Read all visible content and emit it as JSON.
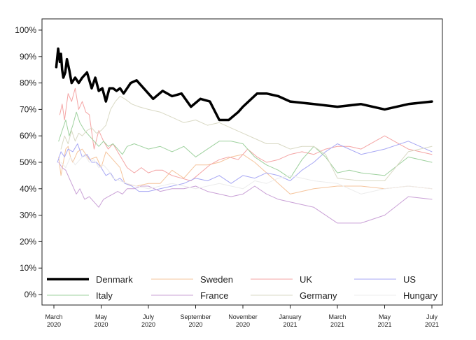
{
  "chart_data": {
    "type": "line",
    "title": "",
    "xlabel": "",
    "ylabel": "",
    "ylim": [
      0,
      100
    ],
    "x_range": [
      0,
      16
    ],
    "yticks": [
      "0%",
      "10%",
      "20%",
      "30%",
      "40%",
      "50%",
      "60%",
      "70%",
      "80%",
      "90%",
      "100%"
    ],
    "xticks": [
      {
        "x": 0.0,
        "line1": "March",
        "line2": "2020"
      },
      {
        "x": 2.0,
        "line1": "May",
        "line2": "2020"
      },
      {
        "x": 4.0,
        "line1": "July",
        "line2": "2020"
      },
      {
        "x": 6.0,
        "line1": "September",
        "line2": "2020"
      },
      {
        "x": 8.0,
        "line1": "November",
        "line2": "2020"
      },
      {
        "x": 10.0,
        "line1": "January",
        "line2": "2021"
      },
      {
        "x": 12.0,
        "line1": "March",
        "line2": "2021"
      },
      {
        "x": 14.0,
        "line1": "May",
        "line2": "2021"
      },
      {
        "x": 16.0,
        "line1": "July",
        "line2": "2021"
      }
    ],
    "series": [
      {
        "name": "Denmark",
        "color": "#000000",
        "width": 3.5,
        "x": [
          0.1,
          0.18,
          0.25,
          0.3,
          0.35,
          0.4,
          0.48,
          0.55,
          0.65,
          0.75,
          0.9,
          1.05,
          1.2,
          1.4,
          1.6,
          1.75,
          1.9,
          2.05,
          2.2,
          2.35,
          2.5,
          2.65,
          2.8,
          2.95,
          3.1,
          3.25,
          3.5,
          3.8,
          4.2,
          4.6,
          5.0,
          5.4,
          5.8,
          6.2,
          6.6,
          7.0,
          7.4,
          7.8,
          8.0,
          8.6,
          9.0,
          9.5,
          10.0,
          11.0,
          12.0,
          13.0,
          14.0,
          15.0,
          16.0
        ],
        "y": [
          86,
          93,
          88,
          91,
          85,
          82,
          84,
          89,
          85,
          80,
          82,
          80,
          82,
          84,
          78,
          82,
          77,
          78,
          73,
          78,
          78,
          77,
          78,
          76,
          78,
          80,
          81,
          78,
          74,
          77,
          75,
          76,
          71,
          74,
          73,
          66,
          66,
          69,
          71,
          76,
          76,
          75,
          73,
          72,
          71,
          72,
          70,
          72,
          73
        ]
      },
      {
        "name": "Sweden",
        "color": "#f5c49c",
        "width": 1,
        "x": [
          0.2,
          0.3,
          0.4,
          0.5,
          0.6,
          0.7,
          0.8,
          1.0,
          1.2,
          1.5,
          1.8,
          2.0,
          2.2,
          2.5,
          2.8,
          3.0,
          3.5,
          4.0,
          4.5,
          5.0,
          5.5,
          6.0,
          6.5,
          7.0,
          7.5,
          8.0,
          8.5,
          9.0,
          9.5,
          10.0,
          11.0,
          12.0,
          13.0,
          14.0,
          15.0,
          16.0
        ],
        "y": [
          52,
          45,
          50,
          55,
          56,
          52,
          50,
          54,
          55,
          51,
          52,
          48,
          54,
          51,
          48,
          42,
          41,
          42,
          42,
          47,
          44,
          49,
          49,
          50,
          52,
          53,
          50,
          46,
          42,
          38,
          40,
          41,
          41,
          40,
          41,
          40
        ]
      },
      {
        "name": "UK",
        "color": "#f4a4a4",
        "width": 1,
        "x": [
          0.25,
          0.35,
          0.45,
          0.6,
          0.75,
          0.9,
          1.05,
          1.2,
          1.35,
          1.5,
          1.7,
          1.9,
          2.1,
          2.3,
          2.5,
          2.7,
          2.9,
          3.1,
          3.4,
          3.7,
          4.0,
          4.3,
          4.6,
          5.0,
          5.4,
          5.8,
          6.2,
          6.6,
          7.0,
          7.4,
          7.8,
          8.2,
          8.6,
          9.0,
          9.5,
          10.0,
          10.5,
          11.0,
          11.5,
          12.0,
          12.5,
          13.0,
          14.0,
          15.0,
          16.0
        ],
        "y": [
          68,
          72,
          66,
          76,
          73,
          78,
          70,
          73,
          69,
          68,
          55,
          62,
          58,
          55,
          57,
          54,
          51,
          48,
          46,
          48,
          46,
          47,
          47,
          45,
          44,
          43,
          46,
          49,
          51,
          52,
          51,
          55,
          52,
          50,
          51,
          53,
          54,
          53,
          55,
          56,
          56,
          55,
          60,
          55,
          53
        ]
      },
      {
        "name": "US",
        "color": "#a7a7f4",
        "width": 1,
        "x": [
          0.15,
          0.3,
          0.45,
          0.6,
          0.8,
          1.0,
          1.2,
          1.4,
          1.6,
          1.8,
          2.0,
          2.2,
          2.4,
          2.6,
          2.8,
          3.0,
          3.3,
          3.6,
          4.0,
          4.5,
          5.0,
          5.5,
          6.0,
          6.5,
          7.0,
          7.5,
          8.0,
          8.5,
          9.0,
          9.5,
          10.0,
          10.5,
          11.0,
          11.5,
          12.0,
          13.0,
          14.0,
          15.0,
          16.0
        ],
        "y": [
          50,
          54,
          52,
          55,
          54,
          57,
          52,
          53,
          50,
          50,
          48,
          45,
          46,
          43,
          44,
          42,
          41,
          39,
          39,
          40,
          41,
          42,
          44,
          43,
          45,
          42,
          45,
          44,
          46,
          45,
          43,
          47,
          50,
          54,
          57,
          53,
          55,
          58,
          54
        ]
      },
      {
        "name": "Italy",
        "color": "#9ed19e",
        "width": 1,
        "x": [
          0.2,
          0.35,
          0.5,
          0.65,
          0.8,
          0.95,
          1.1,
          1.3,
          1.5,
          1.7,
          1.9,
          2.1,
          2.3,
          2.5,
          2.7,
          2.9,
          3.1,
          3.4,
          3.7,
          4.0,
          4.5,
          5.0,
          5.5,
          6.0,
          6.5,
          7.0,
          7.5,
          8.0,
          8.5,
          9.0,
          9.5,
          10.0,
          10.5,
          11.0,
          11.5,
          12.0,
          12.5,
          13.0,
          14.0,
          15.0,
          16.0
        ],
        "y": [
          58,
          62,
          66,
          60,
          64,
          69,
          65,
          62,
          60,
          58,
          56,
          58,
          56,
          57,
          55,
          53,
          56,
          57,
          56,
          55,
          56,
          54,
          56,
          52,
          55,
          58,
          58,
          57,
          52,
          49,
          47,
          44,
          51,
          56,
          52,
          46,
          47,
          46,
          45,
          52,
          50
        ]
      },
      {
        "name": "France",
        "color": "#c9a0d6",
        "width": 1,
        "x": [
          0.2,
          0.35,
          0.5,
          0.65,
          0.8,
          0.95,
          1.1,
          1.3,
          1.5,
          1.7,
          1.9,
          2.1,
          2.3,
          2.5,
          2.7,
          2.9,
          3.1,
          3.4,
          3.7,
          4.0,
          4.5,
          5.0,
          5.5,
          6.0,
          6.5,
          7.0,
          7.5,
          8.0,
          8.5,
          9.0,
          9.5,
          10.0,
          11.0,
          12.0,
          13.0,
          14.0,
          15.0,
          16.0
        ],
        "y": [
          50,
          48,
          47,
          44,
          41,
          38,
          40,
          36,
          37,
          35,
          33,
          36,
          37,
          38,
          39,
          38,
          40,
          40,
          41,
          41,
          39,
          40,
          40,
          41,
          39,
          38,
          37,
          38,
          41,
          38,
          36,
          35,
          33,
          27,
          27,
          30,
          37,
          36
        ]
      },
      {
        "name": "Germany",
        "color": "#d9d9c4",
        "width": 1,
        "x": [
          0.3,
          0.45,
          0.6,
          0.75,
          0.9,
          1.05,
          1.2,
          1.4,
          1.6,
          1.8,
          2.0,
          2.2,
          2.4,
          2.6,
          2.8,
          3.0,
          3.3,
          3.6,
          4.0,
          4.5,
          5.0,
          5.5,
          6.0,
          6.5,
          7.0,
          7.5,
          8.0,
          8.5,
          9.0,
          9.5,
          10.0,
          10.5,
          11.0,
          11.5,
          12.0,
          13.0,
          14.0,
          15.0,
          16.0
        ],
        "y": [
          55,
          60,
          57,
          62,
          58,
          61,
          60,
          62,
          63,
          61,
          62,
          64,
          70,
          73,
          75,
          74,
          72,
          71,
          70,
          69,
          67,
          65,
          66,
          64,
          65,
          63,
          61,
          59,
          57,
          57,
          55,
          56,
          56,
          53,
          44,
          43,
          43,
          54,
          56
        ]
      },
      {
        "name": "Hungary",
        "color": "#ececec",
        "width": 1,
        "x": [
          0.3,
          0.5,
          0.7,
          0.9,
          1.1,
          1.3,
          1.5,
          1.7,
          1.9,
          2.1,
          2.3,
          2.5,
          2.8,
          3.1,
          3.5,
          4.0,
          4.5,
          5.0,
          5.5,
          6.0,
          6.5,
          7.0,
          7.5,
          8.0,
          8.5,
          9.0,
          9.5,
          10.0,
          11.0,
          12.0,
          13.0,
          14.0,
          15.0,
          16.0
        ],
        "y": [
          50,
          48,
          52,
          49,
          51,
          53,
          50,
          51,
          48,
          49,
          47,
          44,
          43,
          42,
          41,
          40,
          41,
          42,
          41,
          40,
          41,
          42,
          41,
          40,
          43,
          42,
          44,
          45,
          43,
          42,
          38,
          40,
          41,
          40
        ]
      }
    ],
    "legend": {
      "placement": "bottom",
      "entries": [
        "Denmark",
        "Sweden",
        "UK",
        "US",
        "Italy",
        "France",
        "Germany",
        "Hungary"
      ]
    }
  }
}
